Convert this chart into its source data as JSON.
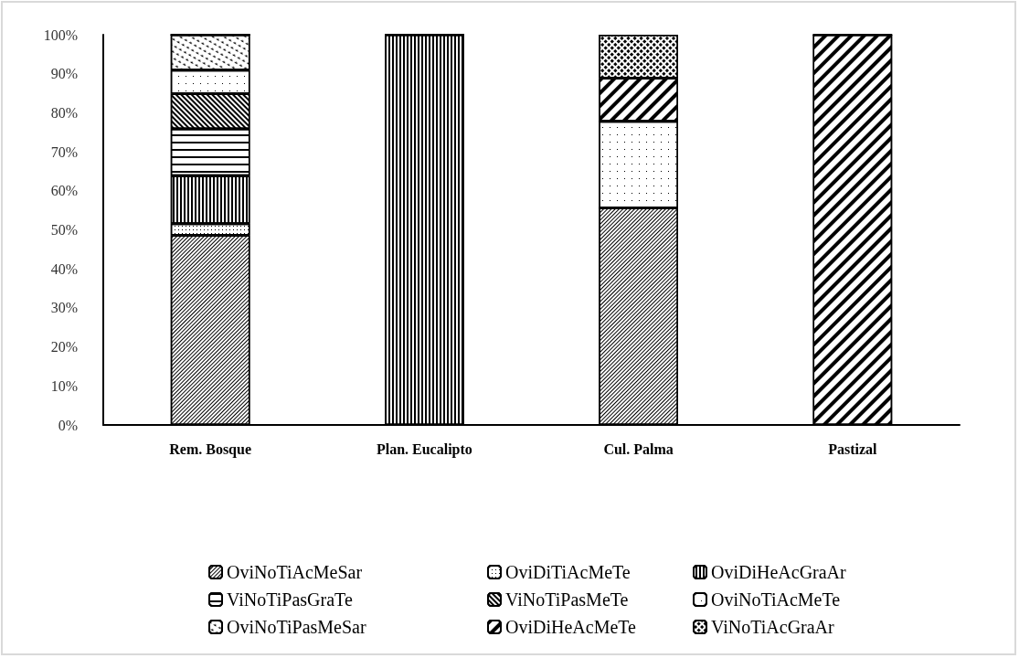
{
  "chart_data": {
    "type": "bar",
    "stacked": true,
    "categories": [
      "Rem. Bosque",
      "Plan. Eucalipto",
      "Cul. Palma",
      "Pastizal"
    ],
    "series": [
      {
        "name": "OviNoTiAcMeSar",
        "color": "#000000",
        "values": [
          48.6,
          0,
          55.6,
          0
        ]
      },
      {
        "name": "OviDiTiAcMeTe",
        "color": "#000000",
        "values": [
          3.0,
          0,
          0,
          0
        ]
      },
      {
        "name": "OviDiHeAcGraAr",
        "color": "#000000",
        "values": [
          12.3,
          100,
          0,
          0
        ]
      },
      {
        "name": "ViNoTiPasGraTe",
        "color": "#000000",
        "values": [
          12.0,
          0,
          0,
          0
        ]
      },
      {
        "name": "ViNoTiPasMeTe",
        "color": "#000000",
        "values": [
          9.0,
          0,
          0,
          0
        ]
      },
      {
        "name": "OviNoTiAcMeTe",
        "color": "#000000",
        "values": [
          6.0,
          0,
          22.2,
          0
        ]
      },
      {
        "name": "OviNoTiPasMeSar",
        "color": "#000000",
        "values": [
          9.1,
          0,
          0,
          0
        ]
      },
      {
        "name": "OviDiHeAcMeTe",
        "color": "#000000",
        "values": [
          0,
          0,
          11.1,
          100
        ]
      },
      {
        "name": "ViNoTiAcGraAr",
        "color": "#000000",
        "values": [
          0,
          0,
          11.1,
          0
        ]
      }
    ],
    "ylim": [
      0,
      100
    ],
    "yticks": [
      {
        "value": 0,
        "label": "0%"
      },
      {
        "value": 10,
        "label": "10%"
      },
      {
        "value": 20,
        "label": "20%"
      },
      {
        "value": 30,
        "label": "30%"
      },
      {
        "value": 40,
        "label": "40%"
      },
      {
        "value": 50,
        "label": "50%"
      },
      {
        "value": 60,
        "label": "60%"
      },
      {
        "value": 70,
        "label": "70%"
      },
      {
        "value": 80,
        "label": "80%"
      },
      {
        "value": 90,
        "label": "90%"
      },
      {
        "value": 100,
        "label": "100%"
      }
    ],
    "grid": false,
    "legend": "bottom"
  }
}
